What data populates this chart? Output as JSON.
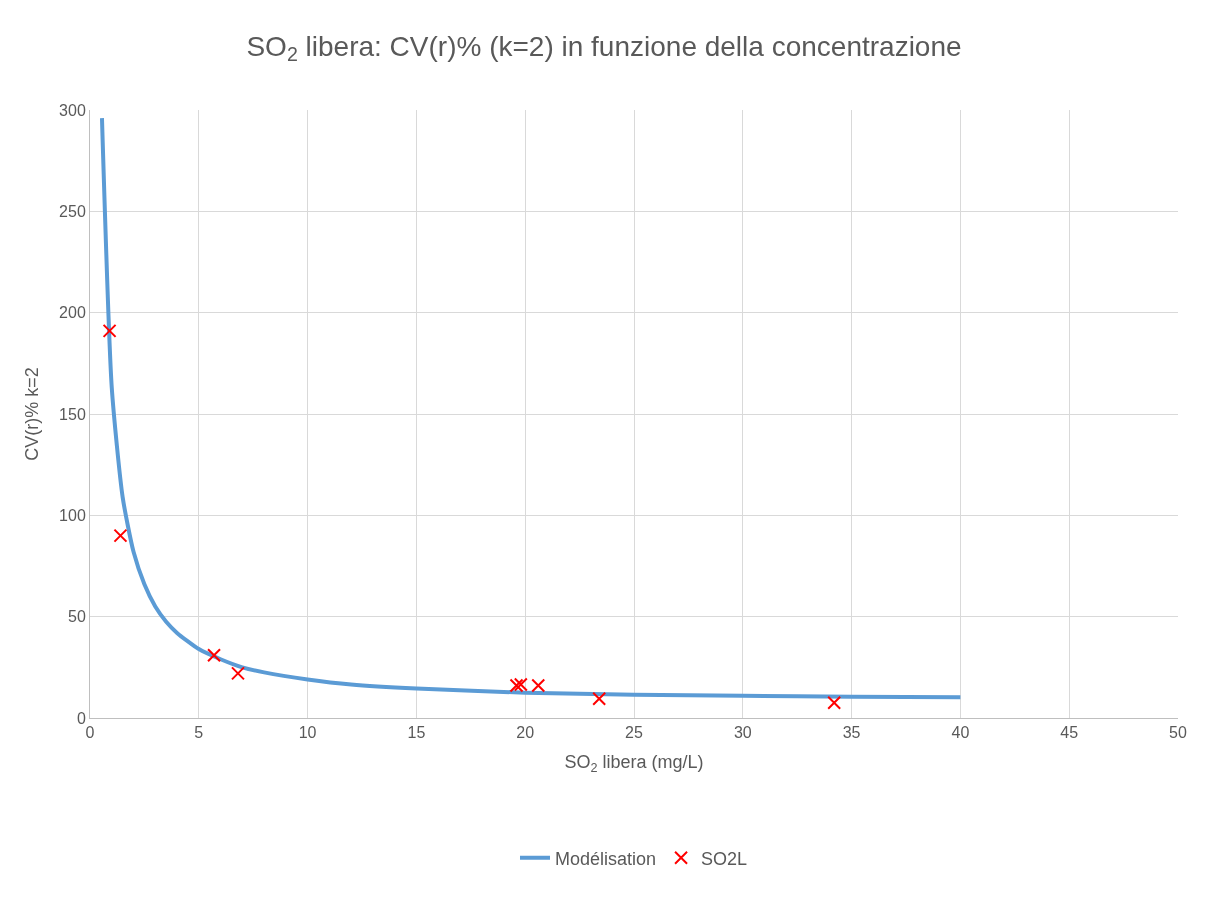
{
  "chart_data": {
    "type": "line",
    "title": "SO$_{2}$ libera: CV(r)% (k=2) in funzione della concentrazione",
    "xlabel": "SO$_{2}$ libera (mg/L)",
    "ylabel": "CV(r)% k=2",
    "xlim": [
      0,
      50
    ],
    "xticks": [
      0,
      5,
      10,
      15,
      20,
      25,
      30,
      35,
      40,
      45,
      50
    ],
    "ylim": [
      0,
      300
    ],
    "yticks": [
      0,
      50,
      100,
      150,
      200,
      250,
      300
    ],
    "grid": true,
    "legend": "bottom",
    "series": [
      {
        "name": "Modélisation",
        "color": "#5b9bd5",
        "marker": "none",
        "x": [
          0.55,
          1,
          1.5,
          2,
          2.5,
          3,
          3.5,
          4,
          5,
          6,
          7,
          8,
          10,
          12,
          15,
          20,
          25,
          30,
          35,
          40
        ],
        "values": [
          296,
          163,
          109,
          82,
          66,
          55,
          47.5,
          42,
          34,
          29,
          25,
          22.5,
          19,
          16.5,
          14.5,
          12.5,
          11.5,
          11,
          10.5,
          10.3
        ]
      },
      {
        "name": "SO2L",
        "type": "scatter",
        "color": "#ff0000",
        "marker": "cross",
        "x": [
          0.9,
          1.4,
          5.7,
          6.8,
          19.6,
          19.8,
          20.6,
          23.4,
          34.2
        ],
        "values": [
          191,
          90,
          31,
          22,
          16,
          16.5,
          16,
          9.5,
          7.5
        ]
      }
    ]
  }
}
